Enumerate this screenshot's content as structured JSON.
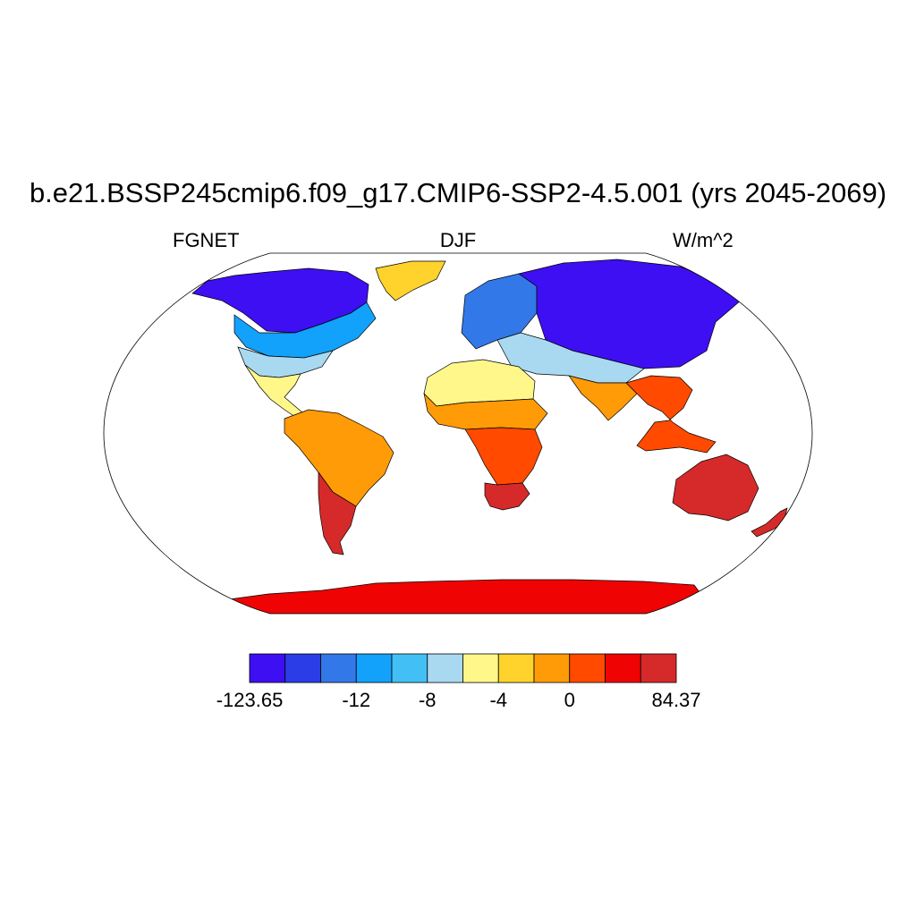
{
  "title": "b.e21.BSSP245cmip6.f09_g17.CMIP6-SSP2-4.5.001 (yrs 2045-2069)",
  "subtitle_left": "FGNET",
  "subtitle_center": "DJF",
  "subtitle_right": "W/m^2",
  "colorbar": {
    "colors": [
      "#3d0ff2",
      "#2a3de6",
      "#3378e8",
      "#12a1fb",
      "#42c0f5",
      "#a9d9f1",
      "#fff78a",
      "#ffd32c",
      "#ff9b06",
      "#ff4a00",
      "#ef0303",
      "#d62a2a"
    ],
    "labels": [
      {
        "text": "-123.65",
        "boundary": 0
      },
      {
        "text": "-12",
        "boundary": 3
      },
      {
        "text": "-8",
        "boundary": 5
      },
      {
        "text": "-4",
        "boundary": 7
      },
      {
        "text": "0",
        "boundary": 9
      },
      {
        "text": "84.37",
        "boundary": 12
      }
    ]
  },
  "map": {
    "projection": "robinson",
    "regions": [
      {
        "name": "north-america-north",
        "level": 0
      },
      {
        "name": "north-america-mid",
        "level": 3
      },
      {
        "name": "north-america-south",
        "level": 5
      },
      {
        "name": "mexico",
        "level": 6
      },
      {
        "name": "greenland",
        "level": 7
      },
      {
        "name": "south-america",
        "level": 8
      },
      {
        "name": "patagonia",
        "level": 11
      },
      {
        "name": "europe-asia-north",
        "level": 2
      },
      {
        "name": "siberia",
        "level": 0
      },
      {
        "name": "central-asia",
        "level": 5
      },
      {
        "name": "sahara",
        "level": 6
      },
      {
        "name": "sahel",
        "level": 8
      },
      {
        "name": "central-africa",
        "level": 9
      },
      {
        "name": "southern-africa",
        "level": 11
      },
      {
        "name": "south-asia",
        "level": 8
      },
      {
        "name": "southeast-asia",
        "level": 9
      },
      {
        "name": "australia",
        "level": 11
      },
      {
        "name": "new-zealand",
        "level": 11
      },
      {
        "name": "antarctica",
        "level": 10
      }
    ]
  }
}
